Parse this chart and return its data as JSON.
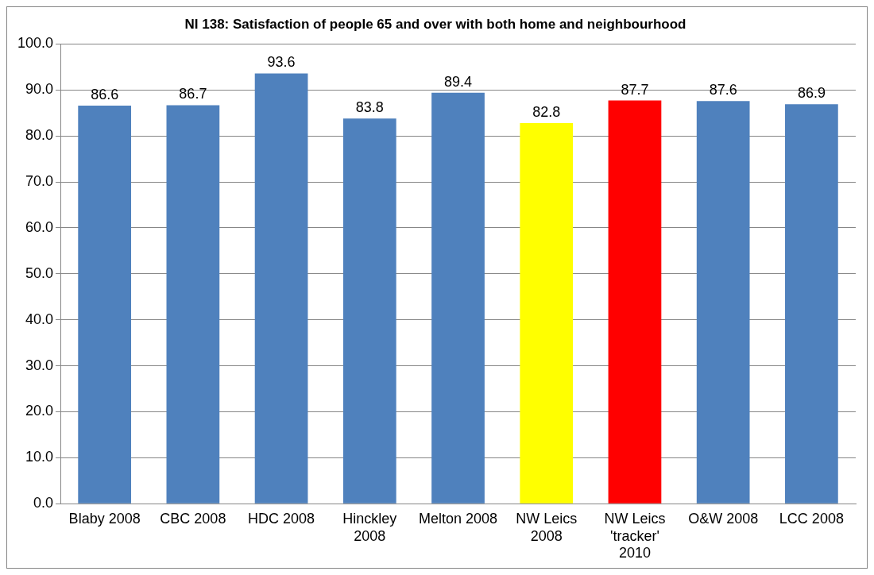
{
  "chart_data": {
    "type": "bar",
    "title": "NI 138: Satisfaction of people 65 and over with both home and neighbourhood",
    "categories": [
      "Blaby 2008",
      "CBC 2008",
      "HDC 2008",
      "Hinckley 2008",
      "Melton 2008",
      "NW Leics 2008",
      "NW Leics 'tracker' 2010",
      "O&W 2008",
      "LCC 2008"
    ],
    "values": [
      86.6,
      86.7,
      93.6,
      83.8,
      89.4,
      82.8,
      87.7,
      87.6,
      86.9
    ],
    "colors": [
      "#4f81bd",
      "#4f81bd",
      "#4f81bd",
      "#4f81bd",
      "#4f81bd",
      "#ffff00",
      "#ff0000",
      "#4f81bd",
      "#4f81bd"
    ],
    "ylim": [
      0,
      100
    ],
    "yticks": [
      {
        "value": 0,
        "label": "0.0"
      },
      {
        "value": 10,
        "label": "10.0"
      },
      {
        "value": 20,
        "label": "20.0"
      },
      {
        "value": 30,
        "label": "30.0"
      },
      {
        "value": 40,
        "label": "40.0"
      },
      {
        "value": 50,
        "label": "50.0"
      },
      {
        "value": 60,
        "label": "60.0"
      },
      {
        "value": 70,
        "label": "70.0"
      },
      {
        "value": 80,
        "label": "80.0"
      },
      {
        "value": 90,
        "label": "90.0"
      },
      {
        "value": 100,
        "label": "100.0"
      }
    ],
    "grid": "y",
    "data_labels": true,
    "legend": false
  }
}
